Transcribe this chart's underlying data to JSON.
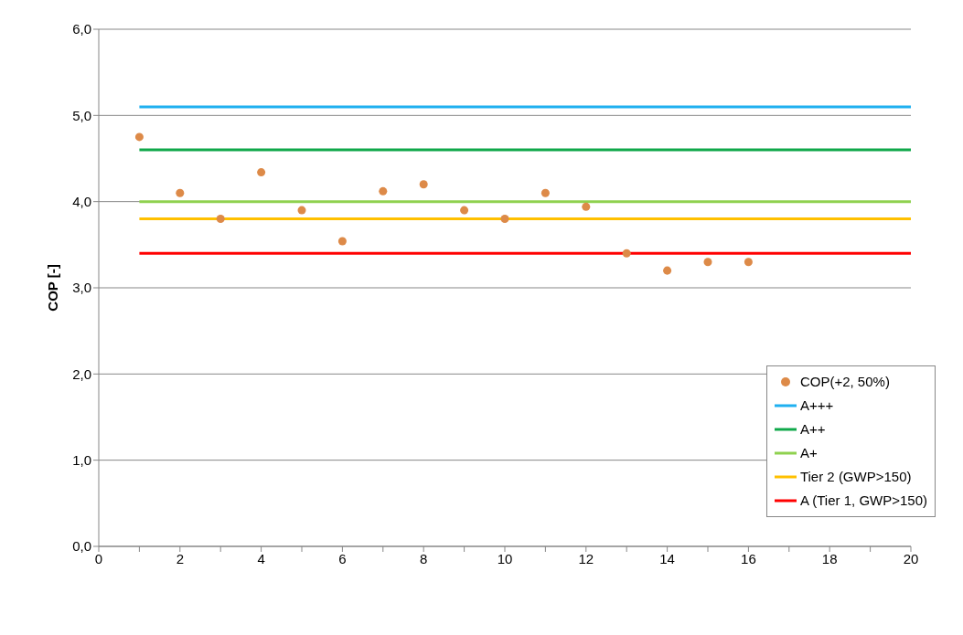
{
  "chart_data": {
    "type": "scatter",
    "ylabel": "COP  [-]",
    "xlim": [
      0,
      20
    ],
    "xticks": [
      0,
      {
        "value": 1,
        "label": null
      },
      2,
      {
        "value": 3,
        "label": null
      },
      4,
      {
        "value": 5,
        "label": null
      },
      6,
      {
        "value": 7,
        "label": null
      },
      8,
      {
        "value": 9,
        "label": null
      },
      10,
      {
        "value": 11,
        "label": null
      },
      12,
      {
        "value": 13,
        "label": null
      },
      14,
      {
        "value": 15,
        "label": null
      },
      16,
      {
        "value": 17,
        "label": null
      },
      18,
      {
        "value": 19,
        "label": null
      },
      20
    ],
    "ylim": [
      0,
      6
    ],
    "yticks": [
      {
        "value": 0,
        "label": "0,0"
      },
      {
        "value": 1,
        "label": "1,0"
      },
      {
        "value": 2,
        "label": "2,0"
      },
      {
        "value": 3,
        "label": "3,0"
      },
      {
        "value": 4,
        "label": "4,0"
      },
      {
        "value": 5,
        "label": "5,0"
      },
      {
        "value": 6,
        "label": "6,0"
      }
    ],
    "grid": "y",
    "legend": "right",
    "series": [
      {
        "name": "COP(+2, 50%)",
        "marker": "circle",
        "color": "#dd8a48",
        "x": [
          1,
          2,
          3,
          4,
          5,
          6,
          7,
          8,
          9,
          10,
          11,
          12,
          13,
          14,
          15,
          16
        ],
        "values": [
          4.75,
          4.1,
          3.8,
          4.34,
          3.9,
          3.54,
          4.12,
          4.2,
          3.9,
          3.8,
          4.1,
          3.94,
          3.4,
          3.2,
          3.3,
          3.3
        ]
      },
      {
        "name": "A+++",
        "type": "line",
        "marker": "none",
        "color": "#1fb0f0",
        "x": [
          1,
          20
        ],
        "values": [
          5.1,
          5.1
        ]
      },
      {
        "name": "A++",
        "type": "line",
        "marker": "none",
        "color": "#10a84a",
        "x": [
          1,
          20
        ],
        "values": [
          4.6,
          4.6
        ]
      },
      {
        "name": "A+",
        "type": "line",
        "marker": "none",
        "color": "#8fd14f",
        "x": [
          1,
          20
        ],
        "values": [
          4.0,
          4.0
        ]
      },
      {
        "name": "Tier 2 (GWP>150)",
        "type": "line",
        "marker": "none",
        "color": "#ffc000",
        "x": [
          1,
          20
        ],
        "values": [
          3.8,
          3.8
        ]
      },
      {
        "name": "A (Tier 1, GWP>150)",
        "type": "line",
        "marker": "none",
        "color": "#ff0000",
        "x": [
          1,
          20
        ],
        "values": [
          3.4,
          3.4
        ]
      }
    ]
  }
}
